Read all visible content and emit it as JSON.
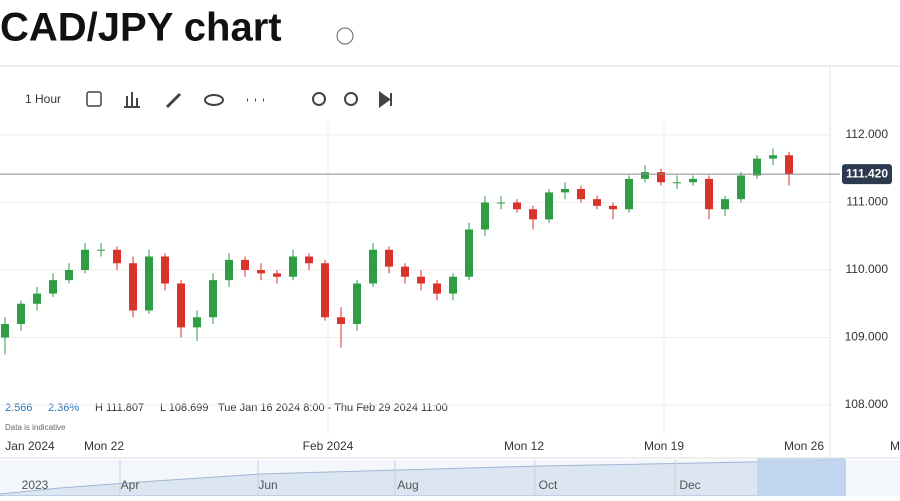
{
  "header": {
    "title": "CAD/JPY chart"
  },
  "toolbar": {
    "interval": "1 Hour"
  },
  "chart_data": {
    "type": "candlestick",
    "open": [
      109.0,
      109.2,
      109.5,
      109.65,
      109.85,
      110.0,
      110.3,
      110.3,
      110.1,
      109.4,
      110.2,
      109.8,
      109.15,
      109.3,
      109.85,
      110.15,
      110.0,
      109.95,
      109.9,
      110.2,
      110.1,
      109.3,
      109.2,
      109.8,
      110.3,
      110.05,
      109.9,
      109.8,
      109.65,
      109.9,
      110.6,
      111.0,
      111.0,
      110.9,
      110.75,
      111.15,
      111.2,
      111.05,
      110.95,
      110.9,
      111.35,
      111.45,
      111.3,
      111.3,
      111.35,
      110.9,
      111.05,
      111.4,
      111.65,
      111.7
    ],
    "high": [
      109.3,
      109.55,
      109.75,
      109.95,
      110.1,
      110.4,
      110.4,
      110.35,
      110.2,
      110.3,
      110.25,
      109.85,
      109.4,
      109.95,
      110.25,
      110.2,
      110.1,
      110.0,
      110.3,
      110.25,
      110.15,
      109.45,
      109.85,
      110.4,
      110.35,
      110.1,
      110.0,
      109.85,
      109.95,
      110.7,
      111.1,
      111.1,
      111.05,
      110.95,
      111.2,
      111.3,
      111.25,
      111.1,
      111.0,
      111.4,
      111.55,
      111.5,
      111.4,
      111.4,
      111.4,
      111.1,
      111.45,
      111.7,
      111.8,
      111.75
    ],
    "low": [
      108.75,
      109.1,
      109.4,
      109.6,
      109.8,
      109.95,
      110.2,
      110.0,
      109.3,
      109.35,
      109.7,
      109.0,
      108.95,
      109.2,
      109.75,
      109.9,
      109.85,
      109.8,
      109.85,
      110.0,
      109.25,
      108.85,
      109.1,
      109.75,
      109.95,
      109.8,
      109.7,
      109.55,
      109.55,
      109.85,
      110.5,
      110.9,
      110.85,
      110.6,
      110.7,
      111.05,
      111.0,
      110.9,
      110.75,
      110.85,
      111.3,
      111.25,
      111.2,
      111.25,
      110.75,
      110.8,
      111.0,
      111.35,
      111.55,
      111.25
    ],
    "close": [
      109.2,
      109.5,
      109.65,
      109.85,
      110.0,
      110.3,
      110.3,
      110.1,
      109.4,
      110.2,
      109.8,
      109.15,
      109.3,
      109.85,
      110.15,
      110.0,
      109.95,
      109.9,
      110.2,
      110.1,
      109.3,
      109.2,
      109.8,
      110.3,
      110.05,
      109.9,
      109.8,
      109.65,
      109.9,
      110.6,
      111.0,
      111.0,
      110.9,
      110.75,
      111.15,
      111.2,
      111.05,
      110.95,
      110.9,
      111.35,
      111.45,
      111.3,
      111.3,
      111.35,
      110.9,
      111.05,
      111.4,
      111.65,
      111.7,
      111.42
    ],
    "up_color": "#2e9e44",
    "down_color": "#d9332b",
    "ylim": [
      107.6,
      112.2
    ],
    "yticks": [
      {
        "value": 108,
        "label": "108.000"
      },
      {
        "value": 109,
        "label": "109.000"
      },
      {
        "value": 110,
        "label": "110.000"
      },
      {
        "value": 111,
        "label": "111.000"
      },
      {
        "value": 112,
        "label": "112.000"
      }
    ],
    "last": {
      "value": 111.42,
      "label": "111.420"
    },
    "xlabels": [
      "Jan 2024",
      "Mon 22",
      "Feb 2024",
      "Mon 12",
      "Mon 19",
      "Mon 26",
      "M"
    ]
  },
  "stats": {
    "change": "2.566",
    "change_pct": "2.36%",
    "high": "H 111.807",
    "low": "L 108.699",
    "range": "Tue Jan 16 2024 8:00 - Thu Feb 29 2024 11:00",
    "note": "Data is indicative"
  },
  "navigator": {
    "labels": [
      "2023",
      "Apr",
      "Jun",
      "Aug",
      "Oct",
      "Dec"
    ]
  }
}
